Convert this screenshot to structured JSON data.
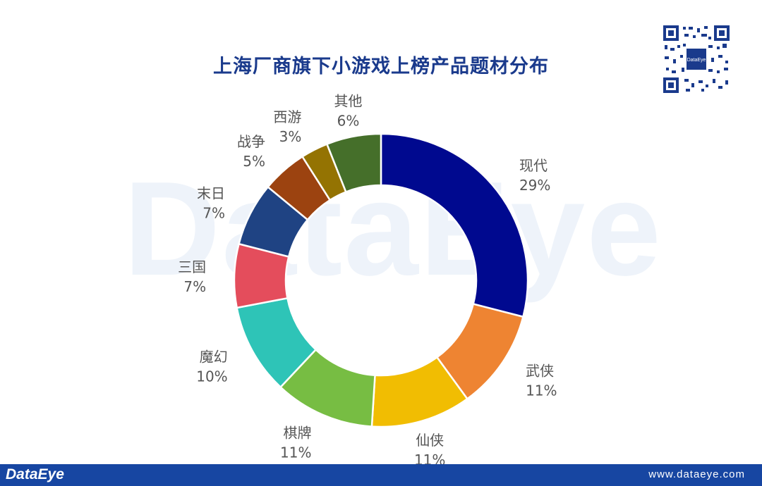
{
  "chart_data": {
    "type": "pie",
    "title": "上海厂商旗下小游戏上榜产品题材分布",
    "categories": [
      "现代",
      "武侠",
      "仙侠",
      "棋牌",
      "魔幻",
      "三国",
      "末日",
      "战争",
      "西游",
      "其他"
    ],
    "values": [
      29,
      11,
      11,
      11,
      10,
      7,
      7,
      5,
      3,
      6
    ],
    "value_labels": [
      "29%",
      "11%",
      "11%",
      "11%",
      "10%",
      "7%",
      "7%",
      "5%",
      "3%",
      "6%"
    ],
    "colors": [
      "#00098f",
      "#ee8432",
      "#f1bd02",
      "#77bd43",
      "#2ec4b7",
      "#e44d5c",
      "#1f4383",
      "#9c4310",
      "#947302",
      "#456f2a"
    ],
    "donut": true,
    "legend": "none"
  },
  "branding": {
    "watermark": "DataEye",
    "footer_logo": "DataEye",
    "footer_url": "www.dataeye.com",
    "qr_badge": "DataEye"
  }
}
